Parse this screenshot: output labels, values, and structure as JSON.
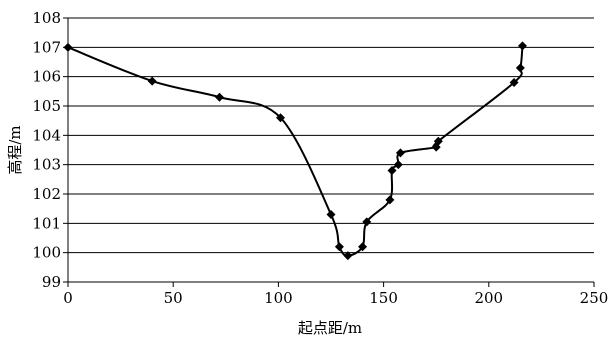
{
  "chart_data": {
    "type": "line",
    "xlabel": "起点距/m",
    "ylabel": "高程/m",
    "xlim": [
      0,
      250
    ],
    "ylim": [
      99,
      108
    ],
    "xticks": [
      0,
      50,
      100,
      150,
      200,
      250
    ],
    "yticks": [
      99,
      100,
      101,
      102,
      103,
      104,
      105,
      106,
      107,
      108
    ],
    "grid": "horizontal",
    "legend": "none",
    "marker": "diamond",
    "line_color": "#000000",
    "series": [
      {
        "x": [
          0,
          40,
          72,
          101,
          125,
          129,
          133,
          140,
          142,
          153,
          154,
          157,
          158,
          175,
          176,
          212,
          215,
          216
        ],
        "y": [
          107.0,
          105.85,
          105.3,
          104.6,
          101.3,
          100.2,
          99.9,
          100.2,
          101.05,
          101.8,
          102.8,
          103.0,
          103.4,
          103.6,
          103.8,
          105.8,
          106.3,
          107.05
        ]
      }
    ]
  }
}
